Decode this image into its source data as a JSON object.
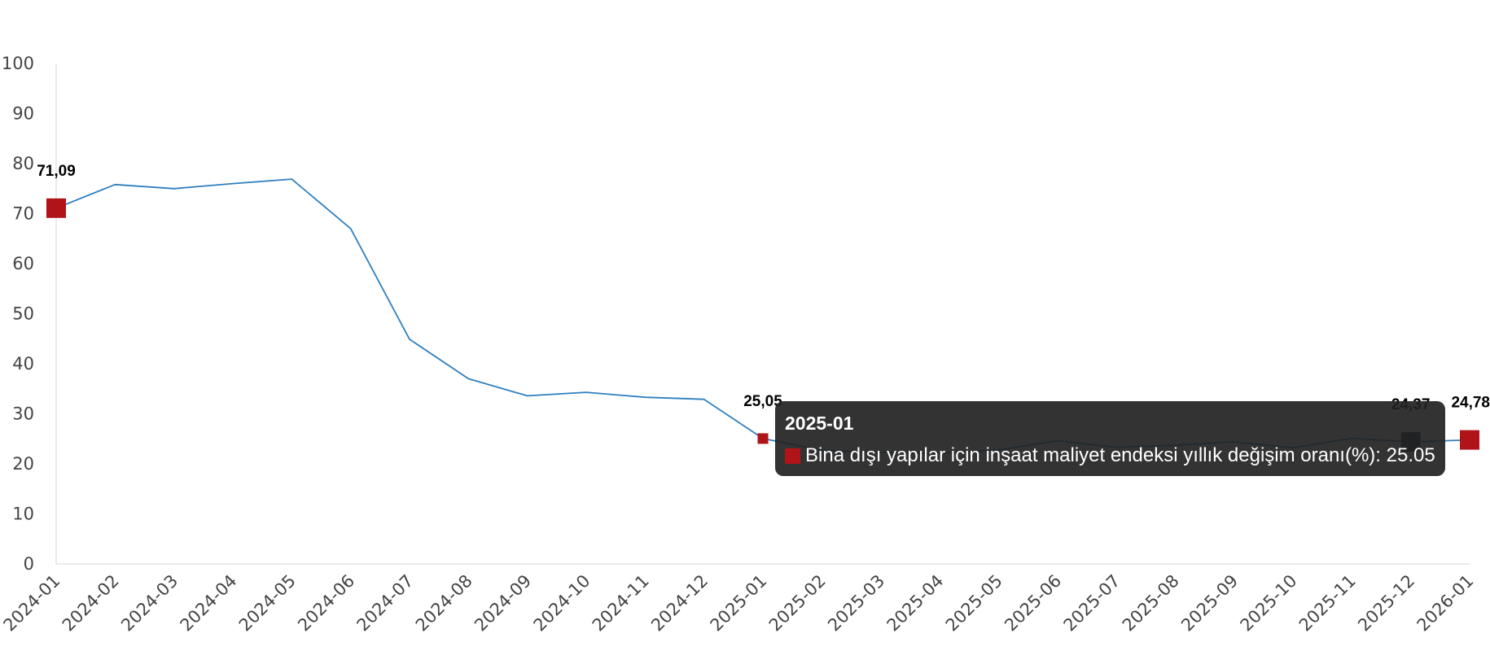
{
  "chart_data": {
    "type": "line",
    "categories": [
      "2024-01",
      "2024-02",
      "2024-03",
      "2024-04",
      "2024-05",
      "2024-06",
      "2024-07",
      "2024-08",
      "2024-09",
      "2024-10",
      "2024-11",
      "2024-12",
      "2025-01",
      "2025-02",
      "2025-03",
      "2025-04",
      "2025-05",
      "2025-06",
      "2025-07",
      "2025-08",
      "2025-09",
      "2025-10",
      "2025-11",
      "2025-12",
      "2026-01"
    ],
    "series": [
      {
        "name": "Bina dışı yapılar için inşaat maliyet endeksi yıllık değişim oranı(%)",
        "values": [
          71.09,
          75.8,
          75.0,
          76.0,
          76.9,
          67.0,
          44.9,
          37.0,
          33.6,
          34.3,
          33.3,
          32.9,
          25.05,
          22.7,
          22.3,
          22.1,
          22.8,
          24.6,
          23.3,
          23.7,
          24.4,
          23.2,
          25.1,
          24.37,
          24.78
        ]
      }
    ],
    "ylim": [
      0,
      100
    ],
    "yticks": [
      0,
      10,
      20,
      30,
      40,
      50,
      60,
      70,
      80,
      90,
      100
    ],
    "grid": false,
    "legend": "none",
    "data_labels": [
      {
        "index": 0,
        "text": "71,09"
      },
      {
        "index": 12,
        "text": "25,05"
      },
      {
        "index": 23,
        "text": "24,37"
      },
      {
        "index": 24,
        "text": "24,78"
      }
    ],
    "markers": [
      {
        "index": 0,
        "size": "large",
        "color": "#b01419"
      },
      {
        "index": 12,
        "size": "small",
        "color": "#b01419"
      },
      {
        "index": 23,
        "size": "large",
        "color": "#1b2b3c"
      },
      {
        "index": 24,
        "size": "large",
        "color": "#b01419"
      }
    ]
  },
  "colors": {
    "line": "#2f7fbf",
    "marker": "#b01419",
    "marker_hover": "#1b2b3c",
    "axis": "#d6d6d6"
  },
  "tooltip": {
    "title": "2025-01",
    "series_label": "Bina dışı yapılar için inşaat maliyet endeksi yıllık değişim oranı(%): 25.05",
    "swatch_color": "#b01419"
  }
}
